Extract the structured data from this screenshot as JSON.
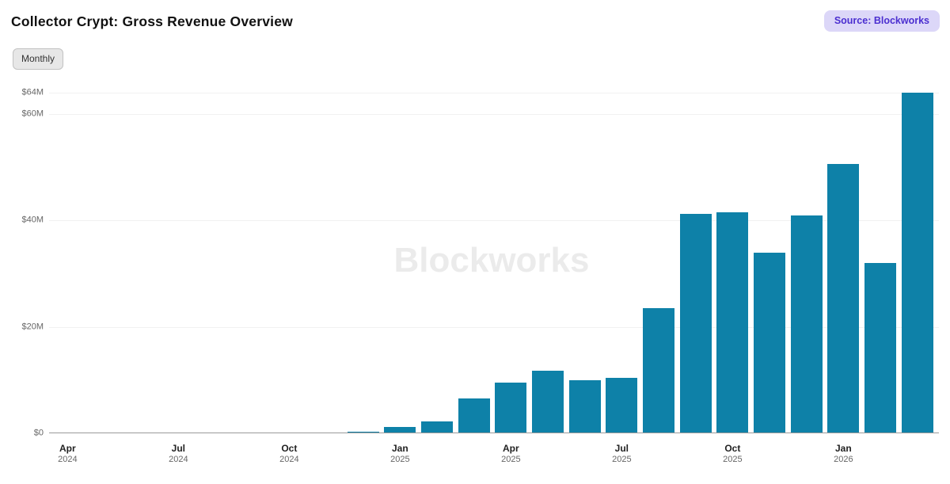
{
  "header": {
    "title": "Collector Crypt: Gross Revenue Overview",
    "source_badge": "Source: Blockworks",
    "frequency_button": "Monthly"
  },
  "watermark": "Blockworks",
  "colors": {
    "bar": "#0e81a8",
    "badge_bg": "#dcd7f8",
    "badge_text": "#4b2fd0",
    "gridline": "#f1f1f1",
    "axis": "#9a9a9a",
    "watermark": "#ebebeb"
  },
  "chart_data": {
    "type": "bar",
    "title": "Collector Crypt: Gross Revenue Overview",
    "unit": "USD millions",
    "categories": [
      "Apr 2024",
      "May 2024",
      "Jun 2024",
      "Jul 2024",
      "Aug 2024",
      "Sep 2024",
      "Oct 2024",
      "Nov 2024",
      "Dec 2024",
      "Jan 2025",
      "Feb 2025",
      "Mar 2025",
      "Apr 2025",
      "May 2025",
      "Jun 2025",
      "Jul 2025",
      "Aug 2025",
      "Sep 2025",
      "Oct 2025",
      "Nov 2025",
      "Dec 2025",
      "Jan 2026",
      "Feb 2026",
      "Mar 2026"
    ],
    "values": [
      0,
      0,
      0,
      0,
      0,
      0,
      0,
      0.1,
      0.3,
      1.2,
      2.2,
      6.5,
      9.5,
      11.8,
      10.0,
      10.4,
      23.5,
      41.2,
      41.5,
      33.9,
      40.9,
      50.6,
      32.0,
      64.0
    ],
    "xlabel": "",
    "ylabel": "",
    "ylim": [
      0,
      64
    ],
    "y_tick_values": [
      0,
      20,
      40,
      60,
      64
    ],
    "y_tick_labels": [
      "$0",
      "$20M",
      "$40M",
      "$60M",
      "$64M"
    ],
    "x_tick_every": 3,
    "grid": true,
    "legend": false
  }
}
